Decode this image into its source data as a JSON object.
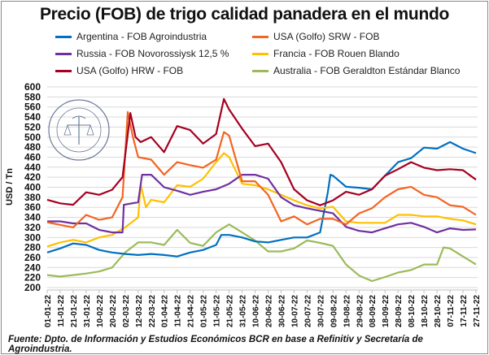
{
  "chart_data": {
    "type": "line",
    "title": "Precio (FOB) de trigo calidad panadera en el mundo",
    "ylabel": "USD / Tn",
    "xlabel": "",
    "ylim": [
      200,
      600
    ],
    "ytick_step": 20,
    "x_unit": "days since 01-01-22",
    "xlim": [
      0,
      330
    ],
    "x_tick_labels": [
      "01-01-22",
      "11-01-22",
      "21-01-22",
      "31-01-22",
      "10-02-22",
      "20-02-22",
      "02-03-22",
      "12-03-22",
      "22-03-22",
      "01-04-22",
      "11-04-22",
      "21-04-22",
      "01-05-22",
      "11-05-22",
      "21-05-22",
      "31-05-22",
      "10-06-22",
      "20-06-22",
      "30-06-22",
      "10-07-22",
      "20-07-22",
      "30-07-22",
      "09-08-22",
      "19-08-22",
      "29-08-22",
      "08-09-22",
      "18-09-22",
      "28-09-22",
      "08-10-22",
      "18-10-22",
      "28-10-22",
      "07-11-22",
      "17-11-22",
      "27-11-22"
    ],
    "grid": true,
    "legend_position": "top",
    "series": [
      {
        "name": "Argentina - FOB Agroindustria",
        "color": "#0070C0",
        "points": [
          [
            0,
            270
          ],
          [
            10,
            278
          ],
          [
            20,
            288
          ],
          [
            30,
            285
          ],
          [
            40,
            275
          ],
          [
            50,
            270
          ],
          [
            60,
            267
          ],
          [
            70,
            265
          ],
          [
            80,
            267
          ],
          [
            90,
            265
          ],
          [
            100,
            262
          ],
          [
            110,
            270
          ],
          [
            120,
            275
          ],
          [
            130,
            285
          ],
          [
            134,
            305
          ],
          [
            140,
            305
          ],
          [
            150,
            300
          ],
          [
            160,
            292
          ],
          [
            170,
            290
          ],
          [
            180,
            295
          ],
          [
            190,
            300
          ],
          [
            200,
            300
          ],
          [
            210,
            310
          ],
          [
            216,
            390
          ],
          [
            218,
            425
          ],
          [
            220,
            423
          ],
          [
            230,
            401
          ],
          [
            240,
            399
          ],
          [
            250,
            396
          ],
          [
            260,
            423
          ],
          [
            270,
            450
          ],
          [
            280,
            458
          ],
          [
            290,
            479
          ],
          [
            300,
            477
          ],
          [
            310,
            490
          ],
          [
            320,
            477
          ],
          [
            330,
            468
          ]
        ]
      },
      {
        "name": "USA (Golfo) SRW - FOB",
        "color": "#F26522",
        "points": [
          [
            0,
            330
          ],
          [
            10,
            325
          ],
          [
            20,
            320
          ],
          [
            30,
            345
          ],
          [
            40,
            335
          ],
          [
            50,
            340
          ],
          [
            58,
            380
          ],
          [
            62,
            550
          ],
          [
            66,
            500
          ],
          [
            70,
            460
          ],
          [
            80,
            455
          ],
          [
            90,
            425
          ],
          [
            100,
            450
          ],
          [
            110,
            444
          ],
          [
            120,
            439
          ],
          [
            130,
            455
          ],
          [
            136,
            510
          ],
          [
            140,
            503
          ],
          [
            150,
            412
          ],
          [
            160,
            412
          ],
          [
            170,
            385
          ],
          [
            180,
            332
          ],
          [
            190,
            342
          ],
          [
            200,
            326
          ],
          [
            210,
            337
          ],
          [
            220,
            337
          ],
          [
            230,
            326
          ],
          [
            240,
            348
          ],
          [
            250,
            358
          ],
          [
            260,
            380
          ],
          [
            270,
            396
          ],
          [
            280,
            401
          ],
          [
            290,
            385
          ],
          [
            300,
            380
          ],
          [
            310,
            364
          ],
          [
            320,
            361
          ],
          [
            330,
            345
          ]
        ]
      },
      {
        "name": "Russia - FOB Novorossiysk 12,5 %",
        "color": "#7030A0",
        "points": [
          [
            0,
            332
          ],
          [
            10,
            332
          ],
          [
            20,
            328
          ],
          [
            30,
            328
          ],
          [
            40,
            315
          ],
          [
            50,
            310
          ],
          [
            58,
            310
          ],
          [
            59,
            365
          ],
          [
            70,
            370
          ],
          [
            73,
            425
          ],
          [
            80,
            425
          ],
          [
            90,
            400
          ],
          [
            100,
            393
          ],
          [
            110,
            385
          ],
          [
            120,
            391
          ],
          [
            130,
            396
          ],
          [
            140,
            407
          ],
          [
            150,
            425
          ],
          [
            160,
            425
          ],
          [
            170,
            417
          ],
          [
            180,
            380
          ],
          [
            190,
            364
          ],
          [
            200,
            358
          ],
          [
            210,
            353
          ],
          [
            220,
            348
          ],
          [
            230,
            321
          ],
          [
            240,
            313
          ],
          [
            250,
            310
          ],
          [
            260,
            318
          ],
          [
            270,
            326
          ],
          [
            280,
            329
          ],
          [
            290,
            321
          ],
          [
            300,
            310
          ],
          [
            310,
            318
          ],
          [
            320,
            315
          ],
          [
            330,
            316
          ]
        ]
      },
      {
        "name": "Francia - FOB Rouen Blando",
        "color": "#FFC000",
        "points": [
          [
            0,
            282
          ],
          [
            10,
            290
          ],
          [
            20,
            295
          ],
          [
            30,
            290
          ],
          [
            40,
            300
          ],
          [
            50,
            305
          ],
          [
            60,
            320
          ],
          [
            70,
            340
          ],
          [
            72,
            405
          ],
          [
            76,
            360
          ],
          [
            80,
            375
          ],
          [
            90,
            370
          ],
          [
            100,
            404
          ],
          [
            110,
            401
          ],
          [
            120,
            417
          ],
          [
            130,
            450
          ],
          [
            136,
            468
          ],
          [
            140,
            460
          ],
          [
            150,
            407
          ],
          [
            160,
            404
          ],
          [
            170,
            396
          ],
          [
            180,
            385
          ],
          [
            190,
            374
          ],
          [
            200,
            364
          ],
          [
            210,
            358
          ],
          [
            220,
            361
          ],
          [
            230,
            332
          ],
          [
            240,
            329
          ],
          [
            250,
            329
          ],
          [
            260,
            329
          ],
          [
            270,
            345
          ],
          [
            280,
            345
          ],
          [
            290,
            342
          ],
          [
            300,
            342
          ],
          [
            310,
            337
          ],
          [
            320,
            334
          ],
          [
            330,
            326
          ]
        ]
      },
      {
        "name": "USA (Golfo) HRW - FOB",
        "color": "#A50021",
        "points": [
          [
            0,
            375
          ],
          [
            10,
            368
          ],
          [
            20,
            365
          ],
          [
            30,
            390
          ],
          [
            40,
            385
          ],
          [
            50,
            395
          ],
          [
            58,
            420
          ],
          [
            64,
            548
          ],
          [
            68,
            500
          ],
          [
            72,
            490
          ],
          [
            80,
            500
          ],
          [
            90,
            470
          ],
          [
            100,
            522
          ],
          [
            110,
            514
          ],
          [
            120,
            487
          ],
          [
            130,
            506
          ],
          [
            136,
            576
          ],
          [
            140,
            555
          ],
          [
            150,
            517
          ],
          [
            160,
            482
          ],
          [
            170,
            487
          ],
          [
            180,
            450
          ],
          [
            190,
            396
          ],
          [
            200,
            374
          ],
          [
            210,
            364
          ],
          [
            220,
            374
          ],
          [
            230,
            391
          ],
          [
            240,
            385
          ],
          [
            250,
            396
          ],
          [
            260,
            423
          ],
          [
            270,
            436
          ],
          [
            280,
            450
          ],
          [
            290,
            439
          ],
          [
            300,
            434
          ],
          [
            310,
            436
          ],
          [
            320,
            434
          ],
          [
            330,
            415
          ]
        ]
      },
      {
        "name": "Australia - FOB Geraldton Estándar Blanco",
        "color": "#9BBB59",
        "points": [
          [
            0,
            225
          ],
          [
            10,
            222
          ],
          [
            20,
            225
          ],
          [
            30,
            228
          ],
          [
            40,
            232
          ],
          [
            50,
            240
          ],
          [
            60,
            270
          ],
          [
            70,
            290
          ],
          [
            80,
            290
          ],
          [
            90,
            285
          ],
          [
            100,
            315
          ],
          [
            110,
            289
          ],
          [
            120,
            283
          ],
          [
            130,
            310
          ],
          [
            140,
            326
          ],
          [
            150,
            310
          ],
          [
            160,
            294
          ],
          [
            170,
            272
          ],
          [
            180,
            272
          ],
          [
            190,
            278
          ],
          [
            200,
            294
          ],
          [
            210,
            289
          ],
          [
            220,
            283
          ],
          [
            230,
            246
          ],
          [
            240,
            224
          ],
          [
            250,
            213
          ],
          [
            260,
            221
          ],
          [
            270,
            230
          ],
          [
            280,
            235
          ],
          [
            290,
            246
          ],
          [
            300,
            246
          ],
          [
            305,
            280
          ],
          [
            310,
            278
          ],
          [
            320,
            262
          ],
          [
            330,
            246
          ]
        ]
      }
    ],
    "source": "Fuente: Dpto. de Información y Estudios Económicos BCR en base a Refinitiv  y Secretaría de Agroindustria."
  }
}
